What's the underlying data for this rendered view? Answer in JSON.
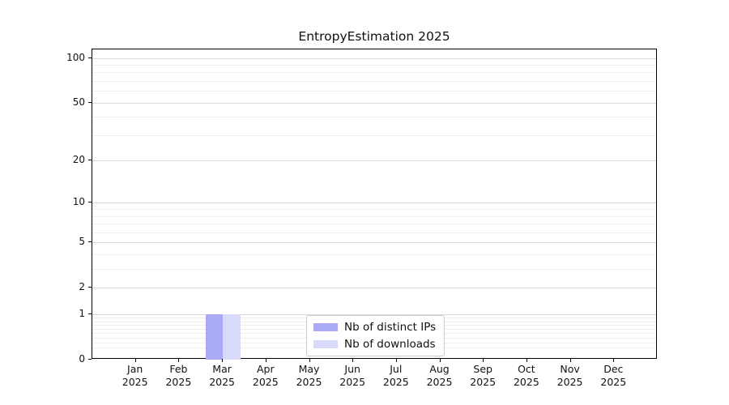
{
  "chart_data": {
    "type": "bar",
    "title": "EntropyEstimation 2025",
    "categories": [
      "Jan 2025",
      "Feb 2025",
      "Mar 2025",
      "Apr 2025",
      "May 2025",
      "Jun 2025",
      "Jul 2025",
      "Aug 2025",
      "Sep 2025",
      "Oct 2025",
      "Nov 2025",
      "Dec 2025"
    ],
    "series": [
      {
        "name": "Nb of distinct IPs",
        "color": "#a9a9f5",
        "values": [
          0,
          0,
          1,
          0,
          0,
          0,
          0,
          0,
          0,
          0,
          0,
          0
        ]
      },
      {
        "name": "Nb of downloads",
        "color": "#d9d9fa",
        "values": [
          0,
          0,
          1,
          0,
          0,
          0,
          0,
          0,
          0,
          0,
          0,
          0
        ]
      }
    ],
    "xlabel": "",
    "ylabel": "",
    "yscale": "log1p",
    "ylim": [
      0,
      114
    ],
    "yticks": [
      0,
      1,
      2,
      5,
      10,
      20,
      50,
      100
    ],
    "yticks_minor": [
      0.2,
      0.3,
      0.4,
      0.5,
      0.6,
      0.7,
      0.8,
      0.9,
      3,
      4,
      6,
      7,
      8,
      9,
      30,
      40,
      60,
      70,
      80,
      90
    ],
    "grid": "both",
    "grid_major_color": "#d9d9d9",
    "grid_minor_color": "#efefef",
    "legend_position": "lower center"
  }
}
